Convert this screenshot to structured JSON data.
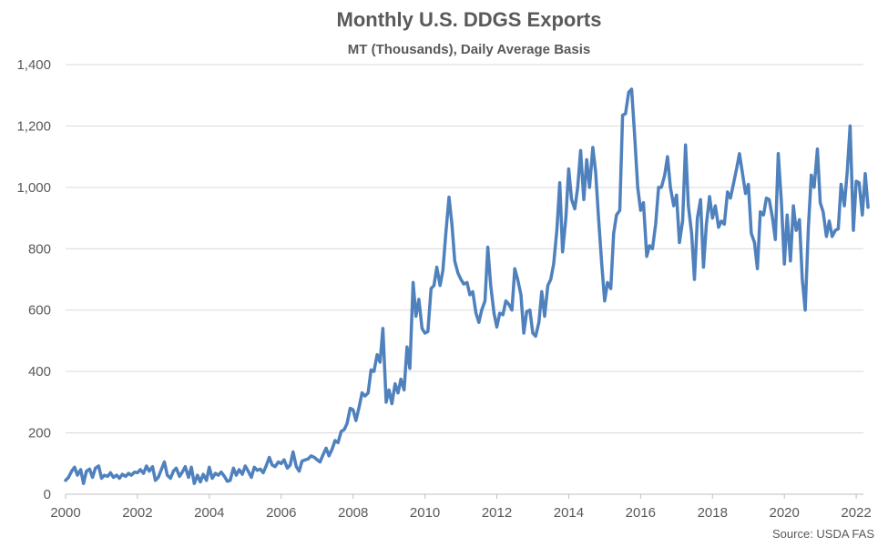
{
  "chart_data": {
    "type": "line",
    "title": "Monthly U.S. DDGS Exports",
    "subtitle": "MT (Thousands), Daily Average Basis",
    "source": "Source: USDA FAS",
    "xlabel": "",
    "ylabel": "",
    "xlim": [
      2000,
      2022.2
    ],
    "ylim": [
      0,
      1400
    ],
    "grid": true,
    "x_ticks": [
      "2000",
      "2002",
      "2004",
      "2006",
      "2008",
      "2010",
      "2012",
      "2014",
      "2016",
      "2018",
      "2020",
      "2022"
    ],
    "y_ticks": [
      "0",
      "200",
      "400",
      "600",
      "800",
      "1,000",
      "1,200",
      "1,400"
    ],
    "series": [
      {
        "color": "#4f81bd",
        "points": [
          [
            2000.0,
            45
          ],
          [
            2000.08,
            55
          ],
          [
            2000.17,
            75
          ],
          [
            2000.25,
            88
          ],
          [
            2000.33,
            62
          ],
          [
            2000.42,
            80
          ],
          [
            2000.5,
            35
          ],
          [
            2000.58,
            75
          ],
          [
            2000.67,
            82
          ],
          [
            2000.75,
            55
          ],
          [
            2000.83,
            85
          ],
          [
            2000.92,
            92
          ],
          [
            2001.0,
            52
          ],
          [
            2001.08,
            62
          ],
          [
            2001.17,
            58
          ],
          [
            2001.25,
            70
          ],
          [
            2001.33,
            55
          ],
          [
            2001.42,
            62
          ],
          [
            2001.5,
            52
          ],
          [
            2001.58,
            65
          ],
          [
            2001.67,
            58
          ],
          [
            2001.75,
            68
          ],
          [
            2001.83,
            62
          ],
          [
            2001.92,
            72
          ],
          [
            2002.0,
            70
          ],
          [
            2002.08,
            80
          ],
          [
            2002.17,
            68
          ],
          [
            2002.25,
            92
          ],
          [
            2002.33,
            75
          ],
          [
            2002.42,
            90
          ],
          [
            2002.5,
            45
          ],
          [
            2002.58,
            55
          ],
          [
            2002.67,
            82
          ],
          [
            2002.75,
            105
          ],
          [
            2002.83,
            62
          ],
          [
            2002.92,
            52
          ],
          [
            2003.0,
            75
          ],
          [
            2003.08,
            85
          ],
          [
            2003.17,
            58
          ],
          [
            2003.25,
            72
          ],
          [
            2003.33,
            90
          ],
          [
            2003.42,
            55
          ],
          [
            2003.5,
            88
          ],
          [
            2003.58,
            35
          ],
          [
            2003.67,
            62
          ],
          [
            2003.75,
            40
          ],
          [
            2003.83,
            65
          ],
          [
            2003.92,
            45
          ],
          [
            2004.0,
            88
          ],
          [
            2004.08,
            52
          ],
          [
            2004.17,
            68
          ],
          [
            2004.25,
            62
          ],
          [
            2004.33,
            72
          ],
          [
            2004.42,
            58
          ],
          [
            2004.5,
            42
          ],
          [
            2004.58,
            45
          ],
          [
            2004.67,
            85
          ],
          [
            2004.75,
            62
          ],
          [
            2004.83,
            80
          ],
          [
            2004.92,
            65
          ],
          [
            2005.0,
            92
          ],
          [
            2005.08,
            75
          ],
          [
            2005.17,
            55
          ],
          [
            2005.25,
            88
          ],
          [
            2005.33,
            78
          ],
          [
            2005.42,
            82
          ],
          [
            2005.5,
            70
          ],
          [
            2005.58,
            92
          ],
          [
            2005.67,
            120
          ],
          [
            2005.75,
            95
          ],
          [
            2005.83,
            90
          ],
          [
            2005.92,
            105
          ],
          [
            2006.0,
            100
          ],
          [
            2006.08,
            112
          ],
          [
            2006.17,
            85
          ],
          [
            2006.25,
            95
          ],
          [
            2006.33,
            138
          ],
          [
            2006.42,
            90
          ],
          [
            2006.5,
            75
          ],
          [
            2006.58,
            108
          ],
          [
            2006.67,
            112
          ],
          [
            2006.75,
            115
          ],
          [
            2006.83,
            125
          ],
          [
            2006.92,
            120
          ],
          [
            2007.0,
            112
          ],
          [
            2007.08,
            105
          ],
          [
            2007.17,
            130
          ],
          [
            2007.25,
            150
          ],
          [
            2007.33,
            125
          ],
          [
            2007.42,
            148
          ],
          [
            2007.5,
            175
          ],
          [
            2007.58,
            168
          ],
          [
            2007.67,
            205
          ],
          [
            2007.75,
            210
          ],
          [
            2007.83,
            230
          ],
          [
            2007.92,
            280
          ],
          [
            2008.0,
            275
          ],
          [
            2008.08,
            240
          ],
          [
            2008.17,
            285
          ],
          [
            2008.25,
            330
          ],
          [
            2008.33,
            320
          ],
          [
            2008.42,
            330
          ],
          [
            2008.5,
            405
          ],
          [
            2008.58,
            400
          ],
          [
            2008.67,
            455
          ],
          [
            2008.75,
            430
          ],
          [
            2008.83,
            540
          ],
          [
            2008.92,
            300
          ],
          [
            2009.0,
            340
          ],
          [
            2009.08,
            295
          ],
          [
            2009.17,
            360
          ],
          [
            2009.25,
            330
          ],
          [
            2009.33,
            375
          ],
          [
            2009.42,
            340
          ],
          [
            2009.5,
            480
          ],
          [
            2009.58,
            410
          ],
          [
            2009.67,
            690
          ],
          [
            2009.75,
            580
          ],
          [
            2009.83,
            635
          ],
          [
            2009.92,
            540
          ],
          [
            2010.0,
            525
          ],
          [
            2010.08,
            530
          ],
          [
            2010.17,
            670
          ],
          [
            2010.25,
            680
          ],
          [
            2010.33,
            740
          ],
          [
            2010.42,
            680
          ],
          [
            2010.5,
            730
          ],
          [
            2010.58,
            850
          ],
          [
            2010.67,
            968
          ],
          [
            2010.75,
            880
          ],
          [
            2010.83,
            760
          ],
          [
            2010.92,
            720
          ],
          [
            2011.0,
            700
          ],
          [
            2011.08,
            685
          ],
          [
            2011.17,
            690
          ],
          [
            2011.25,
            650
          ],
          [
            2011.33,
            660
          ],
          [
            2011.42,
            590
          ],
          [
            2011.5,
            560
          ],
          [
            2011.58,
            600
          ],
          [
            2011.67,
            630
          ],
          [
            2011.75,
            805
          ],
          [
            2011.83,
            680
          ],
          [
            2011.92,
            590
          ],
          [
            2012.0,
            545
          ],
          [
            2012.08,
            590
          ],
          [
            2012.17,
            585
          ],
          [
            2012.25,
            630
          ],
          [
            2012.33,
            620
          ],
          [
            2012.42,
            600
          ],
          [
            2012.5,
            735
          ],
          [
            2012.58,
            700
          ],
          [
            2012.67,
            650
          ],
          [
            2012.75,
            525
          ],
          [
            2012.83,
            595
          ],
          [
            2012.92,
            600
          ],
          [
            2013.0,
            525
          ],
          [
            2013.08,
            515
          ],
          [
            2013.17,
            560
          ],
          [
            2013.25,
            660
          ],
          [
            2013.33,
            580
          ],
          [
            2013.42,
            680
          ],
          [
            2013.5,
            700
          ],
          [
            2013.58,
            750
          ],
          [
            2013.67,
            860
          ],
          [
            2013.75,
            1015
          ],
          [
            2013.83,
            790
          ],
          [
            2013.92,
            900
          ],
          [
            2014.0,
            1060
          ],
          [
            2014.08,
            960
          ],
          [
            2014.17,
            930
          ],
          [
            2014.25,
            1000
          ],
          [
            2014.33,
            1120
          ],
          [
            2014.42,
            960
          ],
          [
            2014.5,
            1090
          ],
          [
            2014.58,
            1000
          ],
          [
            2014.67,
            1130
          ],
          [
            2014.75,
            1050
          ],
          [
            2014.83,
            900
          ],
          [
            2014.92,
            750
          ],
          [
            2015.0,
            630
          ],
          [
            2015.08,
            690
          ],
          [
            2015.17,
            670
          ],
          [
            2015.25,
            850
          ],
          [
            2015.33,
            910
          ],
          [
            2015.42,
            925
          ],
          [
            2015.5,
            1235
          ],
          [
            2015.58,
            1240
          ],
          [
            2015.67,
            1310
          ],
          [
            2015.75,
            1320
          ],
          [
            2015.83,
            1180
          ],
          [
            2015.92,
            1000
          ],
          [
            2016.0,
            925
          ],
          [
            2016.08,
            950
          ],
          [
            2016.17,
            775
          ],
          [
            2016.25,
            810
          ],
          [
            2016.33,
            800
          ],
          [
            2016.42,
            880
          ],
          [
            2016.5,
            1000
          ],
          [
            2016.58,
            1000
          ],
          [
            2016.67,
            1040
          ],
          [
            2016.75,
            1100
          ],
          [
            2016.83,
            1000
          ],
          [
            2016.92,
            940
          ],
          [
            2017.0,
            975
          ],
          [
            2017.08,
            820
          ],
          [
            2017.17,
            890
          ],
          [
            2017.25,
            1138
          ],
          [
            2017.33,
            940
          ],
          [
            2017.42,
            850
          ],
          [
            2017.5,
            700
          ],
          [
            2017.58,
            900
          ],
          [
            2017.67,
            960
          ],
          [
            2017.75,
            740
          ],
          [
            2017.83,
            880
          ],
          [
            2017.92,
            970
          ],
          [
            2018.0,
            900
          ],
          [
            2018.08,
            940
          ],
          [
            2018.17,
            870
          ],
          [
            2018.25,
            890
          ],
          [
            2018.33,
            880
          ],
          [
            2018.42,
            985
          ],
          [
            2018.5,
            965
          ],
          [
            2018.58,
            1010
          ],
          [
            2018.67,
            1060
          ],
          [
            2018.75,
            1110
          ],
          [
            2018.83,
            1050
          ],
          [
            2018.92,
            980
          ],
          [
            2019.0,
            1010
          ],
          [
            2019.08,
            850
          ],
          [
            2019.17,
            820
          ],
          [
            2019.25,
            735
          ],
          [
            2019.33,
            920
          ],
          [
            2019.42,
            910
          ],
          [
            2019.5,
            965
          ],
          [
            2019.58,
            960
          ],
          [
            2019.67,
            900
          ],
          [
            2019.75,
            830
          ],
          [
            2019.83,
            1110
          ],
          [
            2019.92,
            950
          ],
          [
            2020.0,
            750
          ],
          [
            2020.08,
            910
          ],
          [
            2020.17,
            760
          ],
          [
            2020.25,
            940
          ],
          [
            2020.33,
            860
          ],
          [
            2020.42,
            895
          ],
          [
            2020.5,
            700
          ],
          [
            2020.58,
            600
          ],
          [
            2020.67,
            870
          ],
          [
            2020.75,
            1040
          ],
          [
            2020.83,
            1000
          ],
          [
            2020.92,
            1125
          ],
          [
            2021.0,
            950
          ],
          [
            2021.08,
            920
          ],
          [
            2021.17,
            840
          ],
          [
            2021.25,
            890
          ],
          [
            2021.33,
            840
          ],
          [
            2021.42,
            860
          ],
          [
            2021.5,
            865
          ],
          [
            2021.58,
            1010
          ],
          [
            2021.67,
            940
          ],
          [
            2021.75,
            1050
          ],
          [
            2021.83,
            1200
          ],
          [
            2021.92,
            860
          ],
          [
            2022.0,
            1020
          ],
          [
            2022.08,
            1015
          ],
          [
            2022.17,
            910
          ],
          [
            2022.25,
            1045
          ],
          [
            2022.33,
            935
          ]
        ]
      }
    ]
  }
}
